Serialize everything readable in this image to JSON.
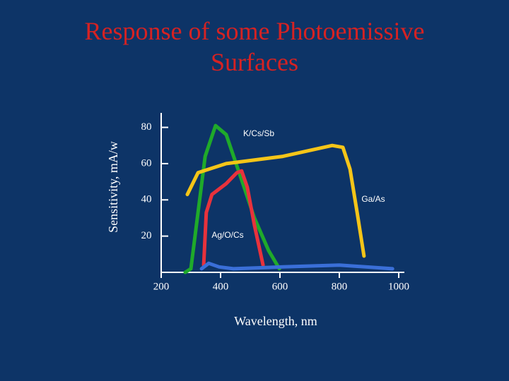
{
  "chart_data": {
    "type": "line",
    "title": "Response of some Photoemissive Surfaces",
    "x_label": "Wavelength, nm",
    "y_label": "Sensitivity, mA/w",
    "xlim": [
      200,
      1000
    ],
    "xticks": [
      200,
      400,
      600,
      800,
      1000
    ],
    "ylim": [
      0,
      88
    ],
    "yticks": [
      20,
      40,
      60,
      80
    ],
    "series": [
      {
        "name": "K/Cs/Sb",
        "color": "#1faa2a",
        "x": [
          281,
          300,
          324,
          348,
          383,
          419,
          467,
          514,
          562,
          598
        ],
        "values": [
          0,
          2,
          33,
          64,
          81,
          76,
          53,
          30,
          12,
          2
        ]
      },
      {
        "name": "Ga/As",
        "color": "#f5c518",
        "x": [
          288,
          324,
          419,
          610,
          776,
          812,
          836,
          860,
          883
        ],
        "values": [
          43,
          55,
          60,
          64,
          70,
          69,
          57,
          33,
          9
        ]
      },
      {
        "color": "#e8323c",
        "x": [
          343,
          352,
          371,
          419,
          455,
          471,
          490,
          514,
          543
        ],
        "values": [
          4,
          33,
          43,
          49,
          55,
          56,
          47,
          26,
          4
        ]
      },
      {
        "name": "Ag/O/Cs",
        "color": "#3a6fd8",
        "x": [
          336,
          360,
          395,
          443,
          610,
          800,
          979
        ],
        "values": [
          2,
          5,
          3,
          2,
          3,
          4,
          2
        ]
      }
    ]
  }
}
